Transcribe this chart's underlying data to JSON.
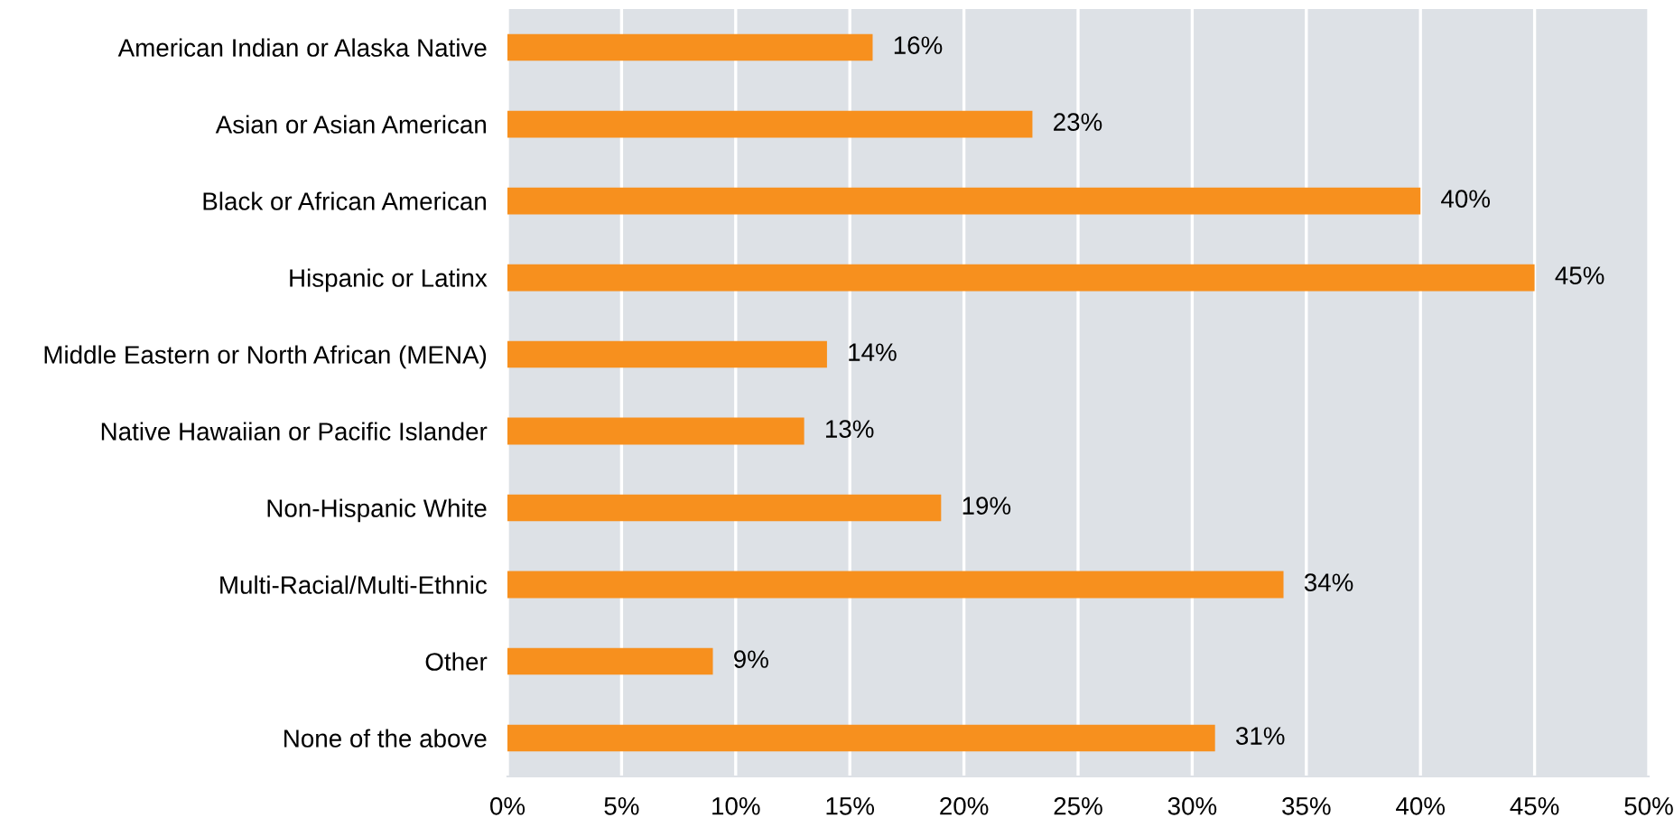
{
  "chart_data": {
    "type": "bar",
    "orientation": "horizontal",
    "categories": [
      "American Indian or Alaska Native",
      "Asian or Asian American",
      "Black or African American",
      "Hispanic or Latinx",
      "Middle Eastern or North African (MENA)",
      "Native Hawaiian or Pacific Islander",
      "Non-Hispanic White",
      "Multi-Racial/Multi-Ethnic",
      "Other",
      "None of the above"
    ],
    "values": [
      16,
      23,
      40,
      45,
      14,
      13,
      19,
      34,
      9,
      31
    ],
    "value_labels": [
      "16%",
      "23%",
      "40%",
      "45%",
      "14%",
      "13%",
      "19%",
      "34%",
      "9%",
      "31%"
    ],
    "color": "#f7901e",
    "xlim": [
      0,
      50
    ],
    "xticks": [
      {
        "value": 0,
        "label": "0%"
      },
      {
        "value": 5,
        "label": "5%"
      },
      {
        "value": 10,
        "label": "10%"
      },
      {
        "value": 15,
        "label": "15%"
      },
      {
        "value": 20,
        "label": "20%"
      },
      {
        "value": 25,
        "label": "25%"
      },
      {
        "value": 30,
        "label": "30%"
      },
      {
        "value": 35,
        "label": "35%"
      },
      {
        "value": 40,
        "label": "40%"
      },
      {
        "value": 45,
        "label": "45%"
      },
      {
        "value": 50,
        "label": "50%"
      }
    ],
    "grid": "x"
  }
}
